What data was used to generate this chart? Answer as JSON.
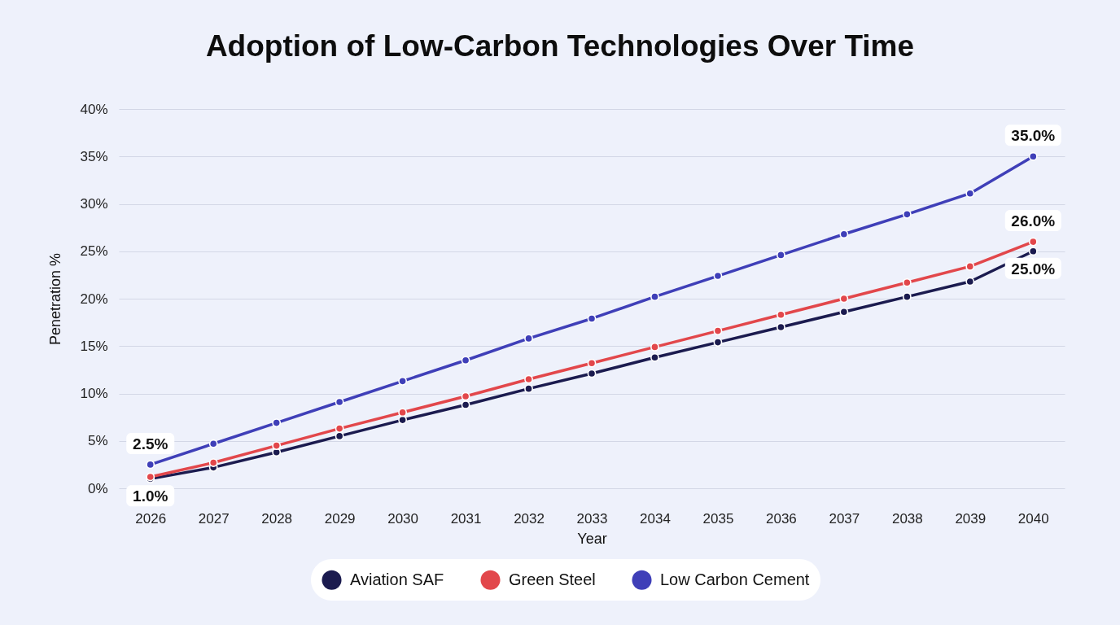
{
  "chart_data": {
    "type": "line",
    "title": "Adoption of Low-Carbon Technologies Over Time",
    "xlabel": "Year",
    "ylabel": "Penetration %",
    "categories": [
      "2026",
      "2027",
      "2028",
      "2029",
      "2030",
      "2031",
      "2032",
      "2033",
      "2034",
      "2035",
      "2036",
      "2037",
      "2038",
      "2039",
      "2040"
    ],
    "series": [
      {
        "name": "Aviation SAF",
        "color": "#1b1b4f",
        "values": [
          1.0,
          2.2,
          3.8,
          5.5,
          7.2,
          8.8,
          10.5,
          12.1,
          13.8,
          15.4,
          17.0,
          18.6,
          20.2,
          21.8,
          25.0
        ],
        "value_labels": [
          "1.0%",
          null,
          null,
          null,
          null,
          null,
          null,
          null,
          null,
          null,
          null,
          null,
          null,
          null,
          "25.0%"
        ]
      },
      {
        "name": "Green Steel",
        "color": "#e2474b",
        "values": [
          1.2,
          2.7,
          4.5,
          6.3,
          8.0,
          9.7,
          11.5,
          13.2,
          14.9,
          16.6,
          18.3,
          20.0,
          21.7,
          23.4,
          26.0
        ],
        "value_labels": [
          null,
          null,
          null,
          null,
          null,
          null,
          null,
          null,
          null,
          null,
          null,
          null,
          null,
          null,
          "26.0%"
        ]
      },
      {
        "name": "Low Carbon Cement",
        "color": "#3f3fb8",
        "values": [
          2.5,
          4.7,
          6.9,
          9.1,
          11.3,
          13.5,
          15.8,
          17.9,
          20.2,
          22.4,
          24.6,
          26.8,
          28.9,
          31.1,
          35.0
        ],
        "value_labels": [
          "2.5%",
          null,
          null,
          null,
          null,
          null,
          null,
          null,
          null,
          null,
          null,
          null,
          null,
          null,
          "35.0%"
        ]
      }
    ],
    "ylim": [
      0,
      40
    ],
    "yticks": [
      {
        "value": 0,
        "label": "0%"
      },
      {
        "value": 5,
        "label": "5%"
      },
      {
        "value": 10,
        "label": "10%"
      },
      {
        "value": 15,
        "label": "15%"
      },
      {
        "value": 20,
        "label": "20%"
      },
      {
        "value": 25,
        "label": "25%"
      },
      {
        "value": 30,
        "label": "30%"
      },
      {
        "value": 35,
        "label": "35%"
      },
      {
        "value": 40,
        "label": "40%"
      }
    ],
    "grid": "y",
    "legend": "bottom",
    "marker": "circle",
    "line_style": "solid"
  }
}
